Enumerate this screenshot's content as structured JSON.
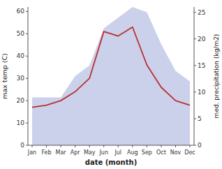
{
  "chart_data": {
    "type": "line",
    "x_label": "date (month)",
    "y_label": "max temp (C)",
    "y2_label": "med. precipitation (kg/m2)",
    "categories": [
      "Jan",
      "Feb",
      "Mar",
      "Apr",
      "May",
      "Jun",
      "Jul",
      "Aug",
      "Sep",
      "Oct",
      "Nov",
      "Dec"
    ],
    "series": [
      {
        "type": "area",
        "axis": "y2",
        "color": "#b0b8e0",
        "values": [
          9,
          9,
          9,
          13,
          15,
          22,
          24,
          26,
          25,
          19,
          14,
          12
        ]
      },
      {
        "type": "line",
        "color": "#b83030",
        "values": [
          17,
          18,
          20,
          24,
          30,
          51,
          49,
          53,
          36,
          26,
          20,
          18
        ]
      }
    ],
    "ylim": [
      0,
      62
    ],
    "yticks": [
      0,
      10,
      20,
      30,
      40,
      50,
      60
    ],
    "y2lim": [
      0,
      26
    ],
    "y2ticks": [
      0,
      5,
      10,
      15,
      20,
      25
    ],
    "grid": false
  }
}
